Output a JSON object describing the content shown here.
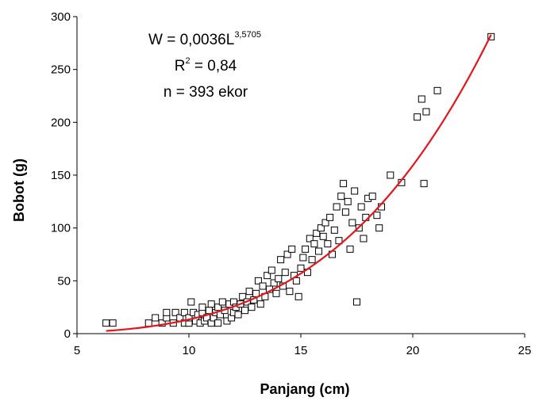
{
  "chart_data": {
    "type": "scatter",
    "xlabel": "Panjang (cm)",
    "ylabel": "Bobot (g)",
    "xlim": [
      5,
      25
    ],
    "ylim": [
      0,
      300
    ],
    "x_ticks": [
      "5",
      "10",
      "15",
      "20",
      "25"
    ],
    "y_ticks": [
      "0",
      "50",
      "100",
      "150",
      "200",
      "250",
      "300"
    ],
    "grid": false,
    "annotation": {
      "equation_base": "W = 0,0036L",
      "equation_exponent": "3,5705",
      "r2_prefix": "R",
      "r2_exponent": "2",
      "r2_value": " = 0,84",
      "n_text": "n = 393 ekor"
    },
    "trendline": {
      "type": "power",
      "a": 0.0036,
      "b": 3.5705,
      "x_range": [
        6.3,
        23.5
      ],
      "color": "#e8141c"
    },
    "marker_color": "#000000",
    "points": [
      [
        6.3,
        10
      ],
      [
        6.6,
        10
      ],
      [
        8.2,
        10
      ],
      [
        8.5,
        15
      ],
      [
        8.8,
        10
      ],
      [
        9.0,
        15
      ],
      [
        9.0,
        20
      ],
      [
        9.3,
        10
      ],
      [
        9.4,
        20
      ],
      [
        9.6,
        15
      ],
      [
        9.8,
        10
      ],
      [
        9.8,
        20
      ],
      [
        10.0,
        10
      ],
      [
        10.0,
        15
      ],
      [
        10.1,
        30
      ],
      [
        10.2,
        20
      ],
      [
        10.3,
        12
      ],
      [
        10.4,
        18
      ],
      [
        10.5,
        10
      ],
      [
        10.6,
        20
      ],
      [
        10.6,
        25
      ],
      [
        10.7,
        12
      ],
      [
        10.8,
        15
      ],
      [
        10.9,
        22
      ],
      [
        11.0,
        28
      ],
      [
        11.0,
        10
      ],
      [
        11.1,
        15
      ],
      [
        11.2,
        20
      ],
      [
        11.3,
        25
      ],
      [
        11.3,
        10
      ],
      [
        11.4,
        18
      ],
      [
        11.5,
        30
      ],
      [
        11.6,
        22
      ],
      [
        11.7,
        12
      ],
      [
        11.8,
        28
      ],
      [
        11.9,
        15
      ],
      [
        12.0,
        20
      ],
      [
        12.0,
        30
      ],
      [
        12.1,
        25
      ],
      [
        12.2,
        18
      ],
      [
        12.3,
        28
      ],
      [
        12.4,
        35
      ],
      [
        12.5,
        22
      ],
      [
        12.6,
        30
      ],
      [
        12.7,
        40
      ],
      [
        12.8,
        25
      ],
      [
        12.9,
        32
      ],
      [
        13.0,
        38
      ],
      [
        13.1,
        50
      ],
      [
        13.2,
        28
      ],
      [
        13.3,
        45
      ],
      [
        13.4,
        35
      ],
      [
        13.5,
        55
      ],
      [
        13.6,
        42
      ],
      [
        13.7,
        60
      ],
      [
        13.8,
        48
      ],
      [
        13.9,
        38
      ],
      [
        14.0,
        52
      ],
      [
        14.1,
        70
      ],
      [
        14.2,
        45
      ],
      [
        14.3,
        58
      ],
      [
        14.4,
        75
      ],
      [
        14.5,
        40
      ],
      [
        14.6,
        80
      ],
      [
        14.7,
        55
      ],
      [
        14.8,
        50
      ],
      [
        14.9,
        35
      ],
      [
        15.0,
        62
      ],
      [
        15.1,
        72
      ],
      [
        15.2,
        80
      ],
      [
        15.3,
        58
      ],
      [
        15.4,
        90
      ],
      [
        15.5,
        70
      ],
      [
        15.6,
        85
      ],
      [
        15.7,
        95
      ],
      [
        15.8,
        78
      ],
      [
        15.9,
        100
      ],
      [
        16.0,
        92
      ],
      [
        16.1,
        105
      ],
      [
        16.2,
        85
      ],
      [
        16.3,
        110
      ],
      [
        16.4,
        75
      ],
      [
        16.5,
        98
      ],
      [
        16.6,
        120
      ],
      [
        16.7,
        88
      ],
      [
        16.8,
        130
      ],
      [
        16.9,
        142
      ],
      [
        17.0,
        115
      ],
      [
        17.1,
        125
      ],
      [
        17.2,
        80
      ],
      [
        17.3,
        105
      ],
      [
        17.4,
        135
      ],
      [
        17.5,
        30
      ],
      [
        17.6,
        100
      ],
      [
        17.7,
        120
      ],
      [
        17.8,
        90
      ],
      [
        17.9,
        110
      ],
      [
        18.0,
        128
      ],
      [
        18.2,
        130
      ],
      [
        18.4,
        112
      ],
      [
        18.5,
        100
      ],
      [
        18.6,
        120
      ],
      [
        19.0,
        150
      ],
      [
        19.5,
        143
      ],
      [
        20.2,
        205
      ],
      [
        20.4,
        222
      ],
      [
        20.6,
        210
      ],
      [
        20.5,
        142
      ],
      [
        21.1,
        230
      ],
      [
        23.5,
        281
      ]
    ]
  }
}
